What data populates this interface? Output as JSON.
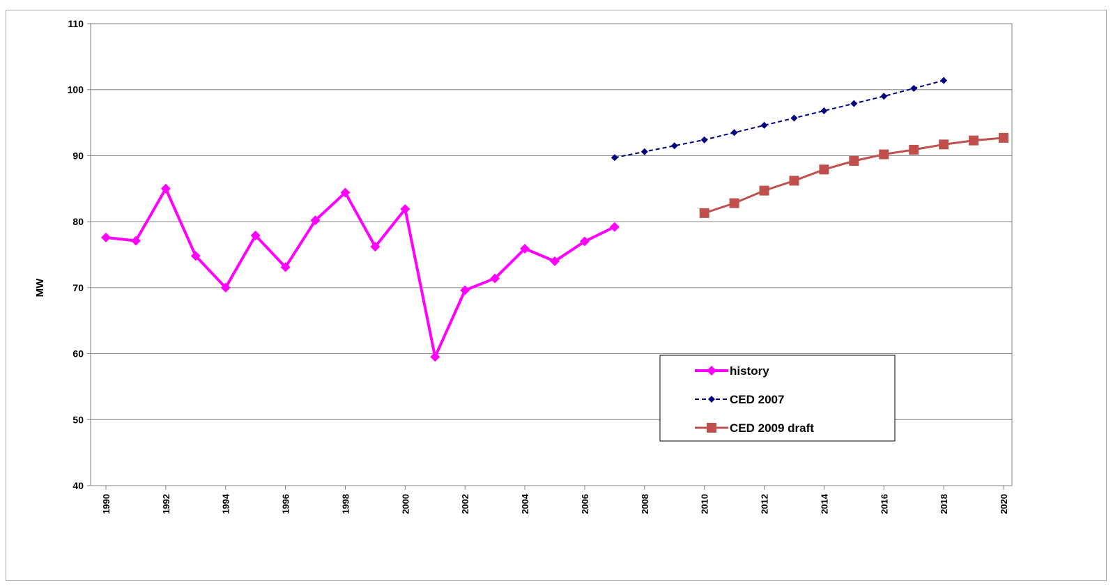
{
  "chart_data": {
    "type": "line",
    "title": "",
    "xlabel": "",
    "ylabel": "MW",
    "ylim": [
      40,
      110
    ],
    "yticks": [
      40,
      50,
      60,
      70,
      80,
      90,
      100,
      110
    ],
    "xlim": [
      1990,
      2020
    ],
    "xticks": [
      1990,
      1992,
      1994,
      1996,
      1998,
      2000,
      2002,
      2004,
      2006,
      2008,
      2010,
      2012,
      2014,
      2016,
      2018,
      2020
    ],
    "x_tick_labels": [
      "1990",
      "1992",
      "1994",
      "1996",
      "1998",
      "2000",
      "2002",
      "2004",
      "2006",
      "2008",
      "2010",
      "2012",
      "2014",
      "2016",
      "2018",
      "2020"
    ],
    "grid": true,
    "legend_position": "lower-right",
    "series": [
      {
        "name": "history",
        "color": "#ff00ff",
        "marker": "diamond",
        "line": "solid",
        "x": [
          1990,
          1991,
          1992,
          1993,
          1994,
          1995,
          1996,
          1997,
          1998,
          1999,
          2000,
          2001,
          2002,
          2003,
          2004,
          2005,
          2006,
          2007
        ],
        "values": [
          77.6,
          77.1,
          85.0,
          74.8,
          70.0,
          77.9,
          73.1,
          80.2,
          84.4,
          76.2,
          81.9,
          59.5,
          69.6,
          71.4,
          75.9,
          74.0,
          77.0,
          79.2
        ]
      },
      {
        "name": "CED 2007",
        "color": "#000080",
        "marker": "diamond",
        "line": "dashed",
        "x": [
          2007,
          2008,
          2009,
          2010,
          2011,
          2012,
          2013,
          2014,
          2015,
          2016,
          2017,
          2018
        ],
        "values": [
          89.7,
          90.6,
          91.5,
          92.4,
          93.5,
          94.6,
          95.7,
          96.8,
          97.9,
          99.0,
          100.2,
          101.4
        ]
      },
      {
        "name": "CED 2009 draft",
        "color": "#c0504d",
        "marker": "square",
        "line": "solid",
        "x": [
          2010,
          2011,
          2012,
          2013,
          2014,
          2015,
          2016,
          2017,
          2018,
          2019,
          2020
        ],
        "values": [
          81.3,
          82.8,
          84.7,
          86.2,
          87.9,
          89.2,
          90.2,
          90.9,
          91.7,
          92.3,
          92.7
        ]
      }
    ]
  }
}
